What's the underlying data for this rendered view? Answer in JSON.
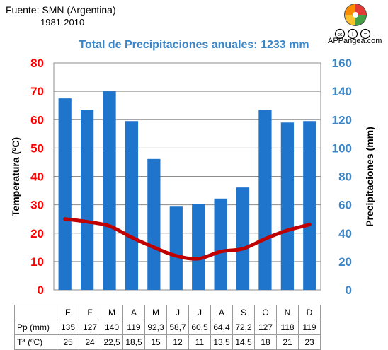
{
  "header": {
    "source": "Fuente: SMN (Argentina)",
    "period": "1981-2010",
    "brand": "APPangea.com",
    "license_glyphs": [
      "cc",
      "i",
      "="
    ]
  },
  "colors": {
    "bars": "#1f74cc",
    "temperature_line": "#c00000",
    "left_axis": "#ff0000",
    "right_axis": "#3a86c8",
    "title": "#3a86c8"
  },
  "icons": [
    "appangea-logo-icon",
    "creative-commons-icon",
    "attribution-icon",
    "no-derivatives-icon"
  ],
  "chart_data": {
    "type": "bar",
    "title": "Total de Precipitaciones anuales: 1233 mm",
    "categories": [
      "E",
      "F",
      "M",
      "A",
      "M",
      "J",
      "J",
      "A",
      "S",
      "O",
      "N",
      "D"
    ],
    "y_left_label": "Temperatura (ºC)",
    "y_right_label": "Precipitaciones (mm)",
    "y_left_range": [
      0,
      80
    ],
    "y_left_ticks": [
      "0",
      "10",
      "20",
      "30",
      "40",
      "50",
      "60",
      "70",
      "80"
    ],
    "y_right_range": [
      0,
      160
    ],
    "y_right_ticks": [
      "0",
      "20",
      "40",
      "60",
      "80",
      "100",
      "120",
      "140",
      "160"
    ],
    "grid": true,
    "series": [
      {
        "name": "Pp (mm)",
        "type": "bar",
        "axis": "right",
        "values": [
          135,
          127,
          140,
          119,
          92.3,
          58.7,
          60.5,
          64.4,
          72.2,
          127,
          118,
          119
        ],
        "labels": [
          "135",
          "127",
          "140",
          "119",
          "92,3",
          "58,7",
          "60,5",
          "64,4",
          "72,2",
          "127",
          "118",
          "119"
        ]
      },
      {
        "name": "Tª (ºC)",
        "type": "line",
        "axis": "left",
        "values": [
          25,
          24,
          22.5,
          18.5,
          15,
          12,
          11,
          13.5,
          14.5,
          18,
          21,
          23
        ],
        "labels": [
          "25",
          "24",
          "22,5",
          "18,5",
          "15",
          "12",
          "11",
          "13,5",
          "14,5",
          "18",
          "21",
          "23"
        ]
      }
    ]
  }
}
